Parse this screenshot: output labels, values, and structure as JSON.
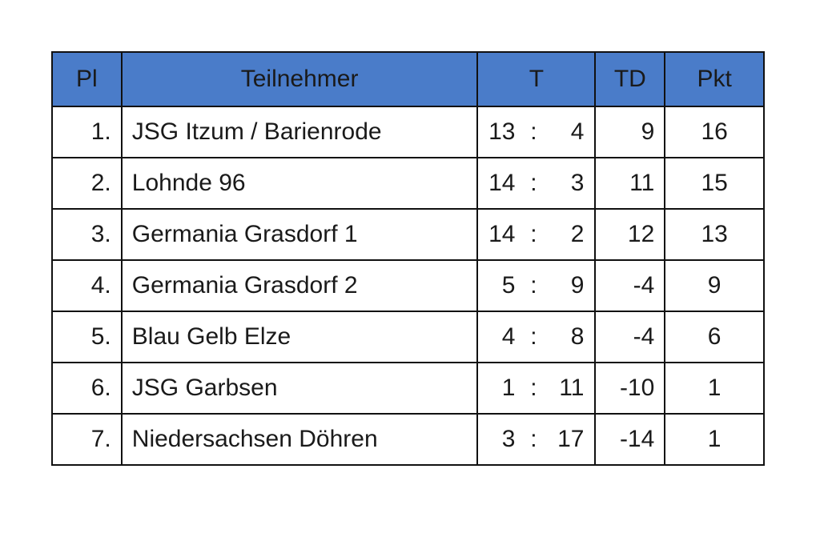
{
  "colors": {
    "header_bg": "#4a7cc9",
    "border": "#111111"
  },
  "headers": [
    "Pl",
    "Teilnehmer",
    "T",
    "TD",
    "Pkt"
  ],
  "rows": [
    {
      "pl": "1.",
      "name": "JSG Itzum / Barienrode",
      "t_for": "13",
      "t_sep": ":",
      "t_against": "4",
      "td": "9",
      "pkt": "16"
    },
    {
      "pl": "2.",
      "name": "Lohnde 96",
      "t_for": "14",
      "t_sep": ":",
      "t_against": "3",
      "td": "11",
      "pkt": "15"
    },
    {
      "pl": "3.",
      "name": "Germania Grasdorf 1",
      "t_for": "14",
      "t_sep": ":",
      "t_against": "2",
      "td": "12",
      "pkt": "13"
    },
    {
      "pl": "4.",
      "name": "Germania Grasdorf 2",
      "t_for": "5",
      "t_sep": ":",
      "t_against": "9",
      "td": "-4",
      "pkt": "9"
    },
    {
      "pl": "5.",
      "name": "Blau Gelb Elze",
      "t_for": "4",
      "t_sep": ":",
      "t_against": "8",
      "td": "-4",
      "pkt": "6"
    },
    {
      "pl": "6.",
      "name": "JSG Garbsen",
      "t_for": "1",
      "t_sep": ":",
      "t_against": "11",
      "td": "-10",
      "pkt": "1"
    },
    {
      "pl": "7.",
      "name": "Niedersachsen Döhren",
      "t_for": "3",
      "t_sep": ":",
      "t_against": "17",
      "td": "-14",
      "pkt": "1"
    }
  ]
}
